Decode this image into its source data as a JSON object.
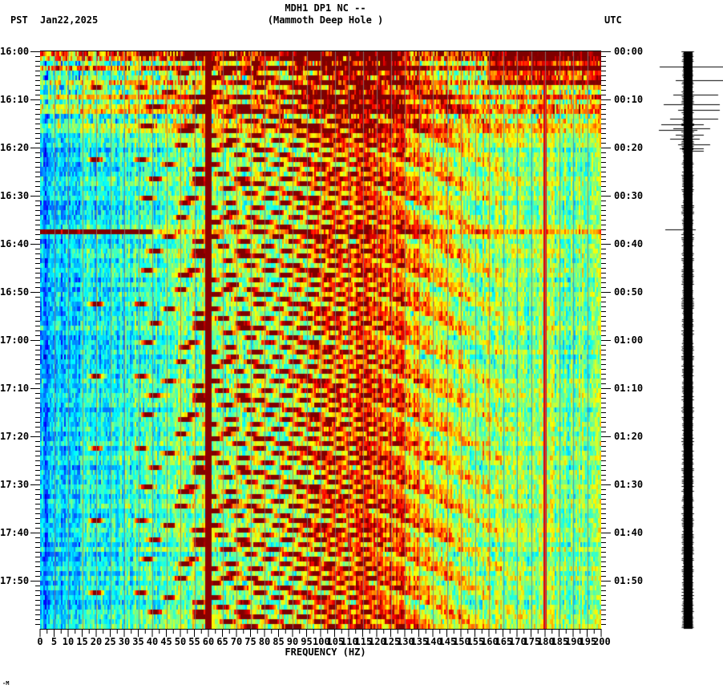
{
  "header": {
    "title_line1": "MDH1 DP1 NC --",
    "title_line2": "(Mammoth Deep Hole )",
    "left_timezone": "PST",
    "date": "Jan22,2025",
    "right_timezone": "UTC"
  },
  "footer": {
    "mark": "-M"
  },
  "colors": {
    "background": "#ffffff",
    "axis": "#000000",
    "gridline": "#808080",
    "colormap": "jet",
    "line_60hz": "#8b0000"
  },
  "chart_data": {
    "type": "heatmap",
    "title": "MDH1 DP1 NC -- (Mammoth Deep Hole )",
    "subtitle": "Jan22,2025",
    "xlabel": "FREQUENCY (HZ)",
    "ylabel_left": "PST",
    "ylabel_right": "UTC",
    "xlim": [
      0,
      200
    ],
    "x_ticks": [
      0,
      5,
      10,
      15,
      20,
      25,
      30,
      35,
      40,
      45,
      50,
      55,
      60,
      65,
      70,
      75,
      80,
      85,
      90,
      95,
      100,
      105,
      110,
      115,
      120,
      125,
      130,
      135,
      140,
      145,
      150,
      155,
      160,
      165,
      170,
      175,
      180,
      185,
      190,
      195,
      200
    ],
    "x_tick_labels": [
      "0",
      "5",
      "10",
      "15",
      "20",
      "25",
      "30",
      "35",
      "40",
      "45",
      "50",
      "55",
      "60",
      "65",
      "70",
      "75",
      "80",
      "85",
      "90",
      "95",
      "100",
      "105",
      "110",
      "115",
      "120",
      "125",
      "130",
      "135",
      "140",
      "145",
      "150",
      "155",
      "160",
      "165",
      "170",
      "175",
      "180",
      "185",
      "190",
      "195",
      "200"
    ],
    "y_range_minutes": [
      0,
      120
    ],
    "y_ticks_left": [
      "16:00",
      "16:10",
      "16:20",
      "16:30",
      "16:40",
      "16:50",
      "17:00",
      "17:10",
      "17:20",
      "17:30",
      "17:40",
      "17:50"
    ],
    "y_ticks_right": [
      "00:00",
      "00:10",
      "00:20",
      "00:30",
      "00:40",
      "00:50",
      "01:00",
      "01:10",
      "01:20",
      "01:30",
      "01:40",
      "01:50"
    ],
    "y_minor_tick_interval_minutes": 1,
    "grid": {
      "vertical_lines_every_hz": 5,
      "color": "gray"
    },
    "features": {
      "persistent_line_hz": [
        60,
        180
      ],
      "low_frequency_quiet_band_hz": [
        0,
        25
      ],
      "noisy_broadband_period_minutes": [
        0,
        17
      ],
      "horizontal_event_minute": 37.5,
      "chirp_repeat_period_minutes": 7.5,
      "chirp_description": "repeating arcs sweeping from ~20 Hz upward to ~120 Hz"
    },
    "colorbar": "none",
    "seismogram_trace": {
      "position": "right",
      "large_spikes_minutes": [
        5,
        7,
        11,
        13,
        15,
        17,
        18,
        19,
        20,
        21,
        37
      ]
    }
  }
}
